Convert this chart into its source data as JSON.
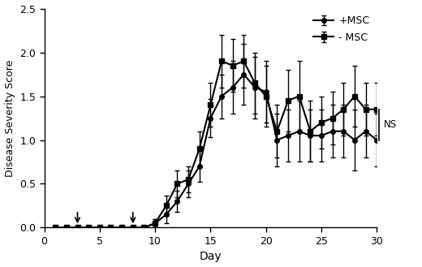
{
  "title": "",
  "xlabel": "Day",
  "ylabel": "Disease Severity Score",
  "xlim": [
    0,
    30
  ],
  "ylim": [
    0,
    2.5
  ],
  "yticks": [
    0.0,
    0.5,
    1.0,
    1.5,
    2.0,
    2.5
  ],
  "xticks": [
    0,
    5,
    10,
    15,
    20,
    25,
    30
  ],
  "arrow_days": [
    3,
    8
  ],
  "plus_msc": {
    "label": "+MSC",
    "days": [
      1,
      2,
      3,
      4,
      5,
      6,
      7,
      8,
      9,
      10,
      11,
      12,
      13,
      14,
      15,
      16,
      17,
      18,
      19,
      20,
      21,
      22,
      23,
      24,
      25,
      26,
      27,
      28,
      29,
      30
    ],
    "mean": [
      0.0,
      0.0,
      0.0,
      0.0,
      0.0,
      0.0,
      0.0,
      0.0,
      0.0,
      0.05,
      0.15,
      0.3,
      0.5,
      0.7,
      1.25,
      1.5,
      1.6,
      1.75,
      1.6,
      1.55,
      1.0,
      1.05,
      1.1,
      1.05,
      1.05,
      1.1,
      1.1,
      1.0,
      1.1,
      1.0
    ],
    "err": [
      0.0,
      0.0,
      0.0,
      0.0,
      0.0,
      0.0,
      0.0,
      0.0,
      0.0,
      0.05,
      0.1,
      0.12,
      0.15,
      0.18,
      0.22,
      0.25,
      0.3,
      0.35,
      0.35,
      0.35,
      0.3,
      0.3,
      0.35,
      0.3,
      0.3,
      0.3,
      0.3,
      0.35,
      0.3,
      0.3
    ]
  },
  "minus_msc": {
    "label": "- MSC",
    "days": [
      1,
      2,
      3,
      4,
      5,
      6,
      7,
      8,
      9,
      10,
      11,
      12,
      13,
      14,
      15,
      16,
      17,
      18,
      19,
      20,
      21,
      22,
      23,
      24,
      25,
      26,
      27,
      28,
      29,
      30
    ],
    "mean": [
      0.0,
      0.0,
      0.0,
      0.0,
      0.0,
      0.0,
      0.0,
      0.0,
      0.0,
      0.05,
      0.25,
      0.5,
      0.55,
      0.9,
      1.4,
      1.9,
      1.85,
      1.9,
      1.65,
      1.5,
      1.1,
      1.45,
      1.5,
      1.1,
      1.2,
      1.25,
      1.35,
      1.5,
      1.35,
      1.35
    ],
    "err": [
      0.0,
      0.0,
      0.0,
      0.0,
      0.0,
      0.0,
      0.0,
      0.0,
      0.0,
      0.05,
      0.12,
      0.15,
      0.15,
      0.2,
      0.25,
      0.3,
      0.3,
      0.3,
      0.35,
      0.35,
      0.3,
      0.35,
      0.4,
      0.35,
      0.3,
      0.3,
      0.3,
      0.35,
      0.3,
      0.3
    ]
  },
  "ns_label": "NS",
  "ns_x": 30.2,
  "ns_y1": 1.0,
  "ns_y2": 1.35,
  "color": "#000000",
  "background": "#ffffff",
  "marker_msc_plus": "o",
  "marker_msc_minus": "s",
  "linewidth": 1.5,
  "markersize": 4.0,
  "capsize": 2,
  "elinewidth": 1.0,
  "figsize": [
    5.2,
    3.29
  ],
  "dpi": 100
}
